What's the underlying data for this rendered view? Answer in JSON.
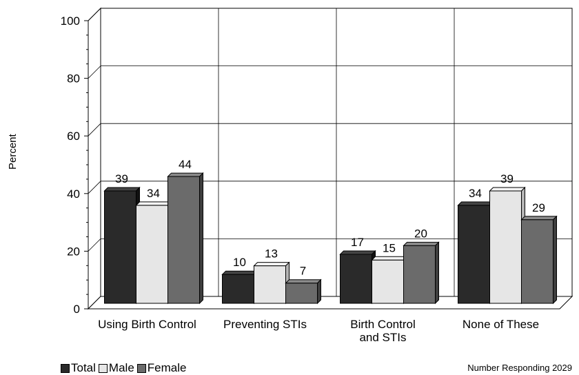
{
  "chart_data": {
    "type": "bar",
    "title": "",
    "ylabel": "Percent",
    "xlabel": "",
    "ylim": [
      0,
      100
    ],
    "yticks": [
      0,
      20,
      40,
      60,
      80,
      100
    ],
    "categories": [
      [
        "Using Birth Control"
      ],
      [
        "Preventing STIs"
      ],
      [
        "Birth Control",
        "and STIs"
      ],
      [
        "None of These"
      ]
    ],
    "series": [
      {
        "name": "Total",
        "color": "#2a2a2a",
        "values": [
          39,
          10,
          17,
          34
        ]
      },
      {
        "name": "Male",
        "color": "#e6e6e6",
        "values": [
          34,
          13,
          15,
          39
        ]
      },
      {
        "name": "Female",
        "color": "#6b6b6b",
        "values": [
          44,
          7,
          20,
          29
        ]
      }
    ],
    "grid": true,
    "legend_position": "bottom-left"
  },
  "footnote": "Number Responding 2029"
}
